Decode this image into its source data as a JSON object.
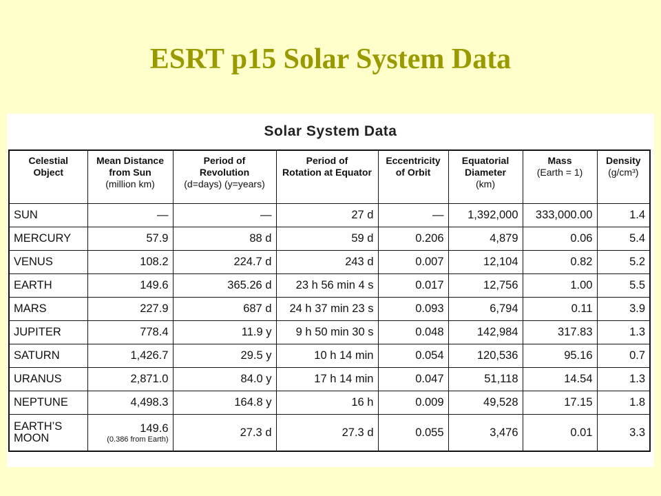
{
  "slide": {
    "title": "ESRT p15 Solar System Data"
  },
  "table": {
    "caption": "Solar System Data",
    "headers": [
      {
        "title": [
          "Celestial",
          "Object"
        ]
      },
      {
        "title": [
          "Mean Distance",
          "from Sun"
        ],
        "unit": "(million km)"
      },
      {
        "title": [
          "Period of",
          "Revolution"
        ],
        "unit": "(d=days)  (y=years)"
      },
      {
        "title": [
          "Period of",
          "Rotation at Equator"
        ]
      },
      {
        "title": [
          "Eccentricity",
          "of Orbit"
        ]
      },
      {
        "title": [
          "Equatorial",
          "Diameter"
        ],
        "unit": "(km)"
      },
      {
        "title": [
          "Mass"
        ],
        "unit": "(Earth = 1)"
      },
      {
        "title": [
          "Density"
        ],
        "unit": "(g/cm³)"
      }
    ],
    "rows": [
      [
        "SUN",
        "—",
        "—",
        "27 d",
        "—",
        "1,392,000",
        "333,000.00",
        "1.4"
      ],
      [
        "MERCURY",
        "57.9",
        "88 d",
        "59 d",
        "0.206",
        "4,879",
        "0.06",
        "5.4"
      ],
      [
        "VENUS",
        "108.2",
        "224.7 d",
        "243 d",
        "0.007",
        "12,104",
        "0.82",
        "5.2"
      ],
      [
        "EARTH",
        "149.6",
        "365.26 d",
        "23 h 56 min 4 s",
        "0.017",
        "12,756",
        "1.00",
        "5.5"
      ],
      [
        "MARS",
        "227.9",
        "687 d",
        "24 h 37 min 23 s",
        "0.093",
        "6,794",
        "0.11",
        "3.9"
      ],
      [
        "JUPITER",
        "778.4",
        "11.9 y",
        "9 h 50 min 30 s",
        "0.048",
        "142,984",
        "317.83",
        "1.3"
      ],
      [
        "SATURN",
        "1,426.7",
        "29.5 y",
        "10 h 14 min",
        "0.054",
        "120,536",
        "95.16",
        "0.7"
      ],
      [
        "URANUS",
        "2,871.0",
        "84.0 y",
        "17 h 14 min",
        "0.047",
        "51,118",
        "14.54",
        "1.3"
      ],
      [
        "NEPTUNE",
        "4,498.3",
        "164.8 y",
        "16 h",
        "0.009",
        "49,528",
        "17.15",
        "1.8"
      ],
      [
        "EARTH’S MOON",
        {
          "value": "149.6",
          "note": "(0.386 from Earth)"
        },
        "27.3 d",
        "27.3 d",
        "0.055",
        "3,476",
        "0.01",
        "3.3"
      ]
    ]
  }
}
